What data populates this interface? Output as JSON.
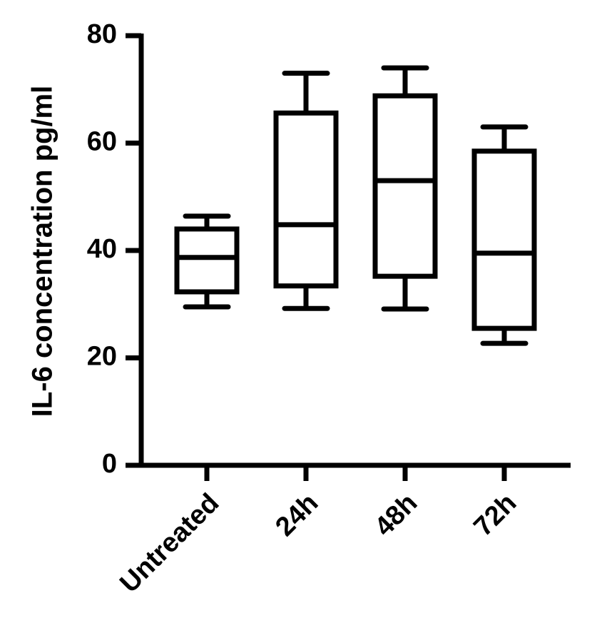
{
  "chart_data": {
    "type": "box",
    "y_label": "IL-6 concentration pg/ml",
    "categories": [
      "Untreated",
      "24h",
      "48h",
      "72h"
    ],
    "min": [
      29.5,
      29.2,
      29.1,
      22.7
    ],
    "q1": [
      32.3,
      33.4,
      35.2,
      25.5
    ],
    "median": [
      38.7,
      44.8,
      53.0,
      39.5
    ],
    "q3": [
      44.0,
      65.6,
      68.8,
      58.5
    ],
    "max": [
      46.4,
      73.0,
      74.0,
      63.0
    ],
    "color": "#000000",
    "ylim": [
      0,
      80
    ],
    "yticks": [
      0,
      20,
      40,
      60,
      80
    ],
    "grid": false
  }
}
